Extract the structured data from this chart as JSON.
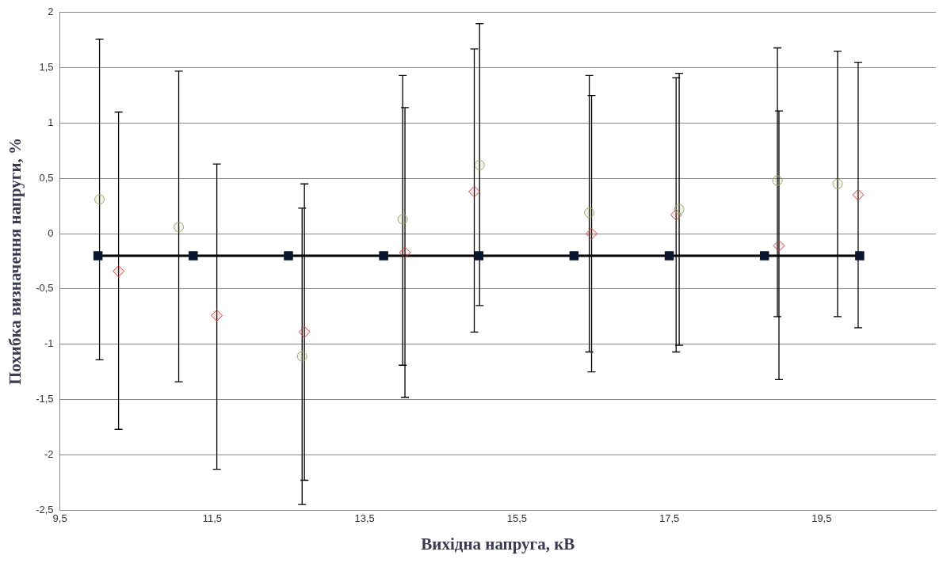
{
  "chart_data": {
    "type": "scatter",
    "xlabel": "Вихідна напруга, кВ",
    "ylabel": "Похибка визначення напруги, %",
    "xlim": [
      9.5,
      21
    ],
    "xticks": [
      {
        "value": 9.5,
        "label": "9,5"
      },
      {
        "value": 11.5,
        "label": "11,5"
      },
      {
        "value": 13.5,
        "label": "13,5"
      },
      {
        "value": 15.5,
        "label": "15,5"
      },
      {
        "value": 17.5,
        "label": "17,5"
      },
      {
        "value": 19.5,
        "label": "19,5"
      }
    ],
    "ylim": [
      -2.5,
      2
    ],
    "yticks": [
      {
        "value": -2.5,
        "label": "-2,5"
      },
      -2,
      {
        "value": -1.5,
        "label": "-1,5"
      },
      -1,
      {
        "value": -0.5,
        "label": "-0,5"
      },
      0,
      {
        "value": 0.5,
        "label": "0,5"
      },
      1,
      {
        "value": 1.5,
        "label": "1,5"
      },
      2
    ],
    "grid": "y",
    "legend": false,
    "series": [
      {
        "type": "line",
        "color": "#0a1530",
        "marker": "square",
        "x": [
          10,
          11.25,
          12.5,
          13.75,
          15,
          16.25,
          17.5,
          18.75,
          20
        ],
        "values": [
          -0.2,
          -0.2,
          -0.2,
          -0.2,
          -0.2,
          -0.2,
          -0.2,
          -0.2,
          -0.2
        ]
      },
      {
        "type": "scatter",
        "color": "#9aa86a",
        "marker": "circle",
        "x": [
          10.02,
          11.06,
          12.68,
          14.0,
          15.01,
          16.45,
          17.63,
          18.92,
          19.71
        ],
        "values": [
          0.31,
          0.06,
          -1.11,
          0.13,
          0.62,
          0.19,
          0.22,
          0.48,
          0.45
        ],
        "errors": [
          [
            -1.14,
            1.76
          ],
          [
            -1.34,
            1.47
          ],
          [
            -2.45,
            0.23
          ],
          [
            -1.19,
            1.43
          ],
          [
            -0.65,
            1.9
          ],
          [
            -1.07,
            1.43
          ],
          [
            -1.01,
            1.45
          ],
          [
            -0.75,
            1.68
          ],
          [
            -0.75,
            1.65
          ]
        ]
      },
      {
        "type": "scatter",
        "color": "#c0504d",
        "marker": "diamond",
        "x": [
          10.27,
          11.56,
          12.71,
          14.03,
          14.94,
          16.48,
          17.59,
          18.94,
          19.98
        ],
        "values": [
          -0.34,
          -0.74,
          -0.89,
          -0.17,
          0.38,
          0.0,
          0.17,
          -0.11,
          0.35
        ],
        "errors": [
          [
            -1.77,
            1.1
          ],
          [
            -2.13,
            0.63
          ],
          [
            -2.23,
            0.45
          ],
          [
            -1.48,
            1.14
          ],
          [
            -0.89,
            1.67
          ],
          [
            -1.25,
            1.25
          ],
          [
            -1.07,
            1.41
          ],
          [
            -1.32,
            1.11
          ],
          [
            -0.85,
            1.55
          ]
        ]
      }
    ]
  }
}
